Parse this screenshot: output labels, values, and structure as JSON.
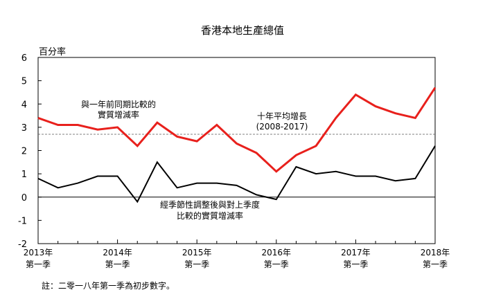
{
  "chart_data": {
    "type": "line",
    "title": "香港本地生產總值",
    "ylabel": "百分率",
    "ylim": [
      -2,
      6
    ],
    "yticks": [
      6,
      5,
      4,
      3,
      2,
      1,
      0,
      -1,
      -2
    ],
    "x_labels": [
      {
        "index": 0,
        "year": "2013年",
        "quarter": "第一季"
      },
      {
        "index": 4,
        "year": "2014年",
        "quarter": "第一季"
      },
      {
        "index": 8,
        "year": "2015年",
        "quarter": "第一季"
      },
      {
        "index": 12,
        "year": "2016年",
        "quarter": "第一季"
      },
      {
        "index": 16,
        "year": "2017年",
        "quarter": "第一季"
      },
      {
        "index": 20,
        "year": "2018年",
        "quarter": "第一季"
      }
    ],
    "series": [
      {
        "id": "yoy",
        "label_lines": [
          "與一年前同期比較的",
          "實質增減率"
        ],
        "color": "#e8201c",
        "values": [
          3.4,
          3.1,
          3.1,
          2.9,
          3.0,
          2.2,
          3.2,
          2.6,
          2.4,
          3.1,
          2.3,
          1.9,
          1.1,
          1.8,
          2.2,
          3.4,
          4.4,
          3.9,
          3.6,
          3.4,
          4.7
        ]
      },
      {
        "id": "qoq",
        "label_lines": [
          "經季節性調整後與對上季度",
          "比較的實質增減率"
        ],
        "color": "#000000",
        "values": [
          0.8,
          0.4,
          0.6,
          0.9,
          0.9,
          -0.2,
          1.5,
          0.4,
          0.6,
          0.6,
          0.5,
          0.1,
          -0.1,
          1.3,
          1.0,
          1.1,
          0.9,
          0.9,
          0.7,
          0.8,
          2.2
        ]
      }
    ],
    "reference": {
      "value": 2.7,
      "label_lines": [
        "十年平均增長",
        "(2008-2017)"
      ],
      "color": "#555555"
    },
    "note": "註：二零一八年第一季為初步數字。"
  }
}
